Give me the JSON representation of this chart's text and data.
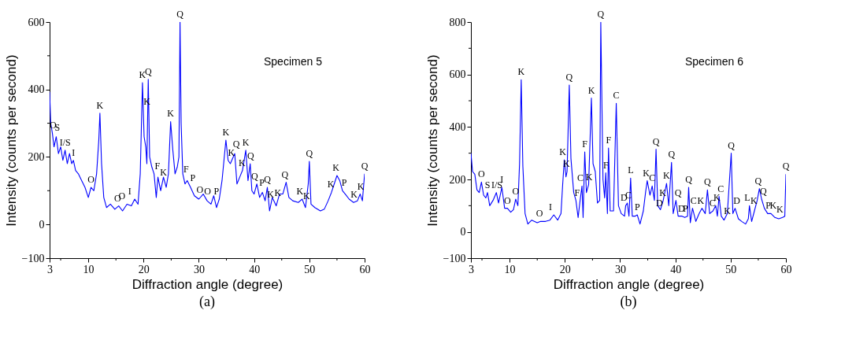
{
  "chart_data": [
    {
      "type": "line",
      "title": "(a)",
      "xlabel": "Diffraction angle (degree)",
      "ylabel": "Intensity (counts per second)",
      "xlim": [
        3,
        60
      ],
      "ylim": [
        -100,
        600
      ],
      "xticks": [
        3,
        {
          "value": 5,
          "label": null
        },
        10,
        {
          "value": 15,
          "label": null
        },
        20,
        {
          "value": 25,
          "label": null
        },
        30,
        {
          "value": 35,
          "label": null
        },
        40,
        {
          "value": 45,
          "label": null
        },
        50,
        {
          "value": 55,
          "label": null
        },
        60
      ],
      "yticks": [
        -100,
        0,
        {
          "value": 100,
          "label": null
        },
        200,
        {
          "value": 300,
          "label": null
        },
        400,
        {
          "value": 500,
          "label": null
        },
        600
      ],
      "series": [
        {
          "color": "#0000ff",
          "x": [
            3,
            3.2,
            3.5,
            3.8,
            4.2,
            4.6,
            5,
            5.4,
            5.8,
            6.2,
            6.6,
            7,
            7.3,
            7.7,
            8.2,
            8.8,
            9.4,
            10,
            10.5,
            11,
            11.5,
            11.9,
            12.1,
            12.4,
            12.8,
            13.3,
            14,
            14.8,
            15.5,
            16.2,
            17,
            17.8,
            18.4,
            19,
            19.4,
            19.8,
            20.1,
            20.4,
            20.6,
            20.85,
            21.1,
            21.5,
            21.9,
            22.3,
            22.6,
            23.1,
            23.6,
            24.1,
            24.5,
            24.9,
            25.3,
            25.7,
            26.1,
            26.4,
            26.6,
            26.8,
            27.1,
            27.5,
            27.9,
            28.5,
            29.2,
            30,
            30.8,
            31.5,
            32.2,
            32.7,
            33.2,
            33.7,
            34.2,
            34.9,
            35.3,
            35.7,
            36.1,
            36.5,
            36.9,
            37.4,
            37.9,
            38.5,
            38.9,
            39.3,
            39.6,
            40,
            40.5,
            41,
            41.5,
            42,
            42.4,
            42.8,
            43.3,
            44,
            44.6,
            45.2,
            45.8,
            46.3,
            47,
            48,
            48.7,
            49.3,
            49.8,
            50,
            50.3,
            51,
            52,
            52.7,
            53.4,
            54,
            54.5,
            55,
            55.5,
            56,
            56.5,
            57.2,
            58,
            58.7,
            59.2,
            59.6,
            60
          ],
          "values": [
            393,
            300,
            270,
            230,
            260,
            210,
            230,
            190,
            220,
            180,
            210,
            180,
            190,
            160,
            150,
            130,
            110,
            80,
            110,
            100,
            150,
            250,
            330,
            180,
            80,
            50,
            60,
            45,
            55,
            40,
            60,
            55,
            75,
            60,
            150,
            420,
            260,
            230,
            180,
            430,
            200,
            170,
            150,
            80,
            140,
            100,
            140,
            110,
            150,
            305,
            220,
            150,
            170,
            200,
            600,
            300,
            150,
            120,
            130,
            110,
            85,
            75,
            90,
            70,
            60,
            85,
            50,
            75,
            130,
            250,
            190,
            180,
            195,
            210,
            120,
            140,
            160,
            220,
            130,
            180,
            100,
            90,
            120,
            80,
            95,
            70,
            110,
            40,
            80,
            55,
            90,
            90,
            125,
            80,
            70,
            65,
            75,
            50,
            120,
            187,
            60,
            50,
            40,
            45,
            70,
            95,
            120,
            145,
            130,
            100,
            90,
            75,
            65,
            70,
            90,
            70,
            150
          ]
        }
      ],
      "annotations": [
        "Specimen 5",
        {
          "text": "O",
          "x": 3.6,
          "y": 270
        },
        {
          "text": "S",
          "x": 4.4,
          "y": 265
        },
        {
          "text": "I/S",
          "x": 5.8,
          "y": 220
        },
        {
          "text": "I",
          "x": 7.3,
          "y": 190
        },
        {
          "text": "O",
          "x": 10.5,
          "y": 110
        },
        {
          "text": "K",
          "x": 12.1,
          "y": 330
        },
        {
          "text": "O",
          "x": 15.3,
          "y": 55
        },
        {
          "text": "O",
          "x": 16.1,
          "y": 60
        },
        {
          "text": "I",
          "x": 17.5,
          "y": 75
        },
        {
          "text": "K",
          "x": 19.8,
          "y": 420
        },
        {
          "text": "Q",
          "x": 20.85,
          "y": 430
        },
        {
          "text": "K",
          "x": 20.6,
          "y": 340
        },
        {
          "text": "F",
          "x": 22.5,
          "y": 150
        },
        {
          "text": "K",
          "x": 23.6,
          "y": 130
        },
        {
          "text": "K",
          "x": 24.9,
          "y": 305
        },
        {
          "text": "Q",
          "x": 26.6,
          "y": 600
        },
        {
          "text": "F",
          "x": 27.7,
          "y": 140
        },
        {
          "text": "P",
          "x": 28.9,
          "y": 115
        },
        {
          "text": "O",
          "x": 30.2,
          "y": 80
        },
        {
          "text": "O",
          "x": 31.6,
          "y": 75
        },
        {
          "text": "P",
          "x": 33.2,
          "y": 75
        },
        {
          "text": "K",
          "x": 34.9,
          "y": 250
        },
        {
          "text": "K",
          "x": 35.9,
          "y": 190
        },
        {
          "text": "Q",
          "x": 36.8,
          "y": 215
        },
        {
          "text": "K",
          "x": 37.8,
          "y": 160
        },
        {
          "text": "K",
          "x": 38.5,
          "y": 220
        },
        {
          "text": "Q",
          "x": 39.4,
          "y": 180
        },
        {
          "text": "Q",
          "x": 40.1,
          "y": 120
        },
        {
          "text": "P",
          "x": 41.4,
          "y": 100
        },
        {
          "text": "Q",
          "x": 42.4,
          "y": 110
        },
        {
          "text": "K",
          "x": 43,
          "y": 65
        },
        {
          "text": "K",
          "x": 44.3,
          "y": 70
        },
        {
          "text": "Q",
          "x": 45.6,
          "y": 125
        },
        {
          "text": "K",
          "x": 48.3,
          "y": 75
        },
        {
          "text": "K",
          "x": 49.5,
          "y": 60
        },
        {
          "text": "Q",
          "x": 50,
          "y": 187
        },
        {
          "text": "K",
          "x": 53.9,
          "y": 95
        },
        {
          "text": "K",
          "x": 54.8,
          "y": 145
        },
        {
          "text": "P",
          "x": 56.3,
          "y": 100
        },
        {
          "text": "K",
          "x": 58.1,
          "y": 65
        },
        {
          "text": "K",
          "x": 59.3,
          "y": 90
        },
        {
          "text": "Q",
          "x": 60,
          "y": 150
        }
      ]
    },
    {
      "type": "line",
      "title": "(b)",
      "xlabel": "Diffraction angle (degree)",
      "ylabel": "Intensity (counts per second)",
      "xlim": [
        3,
        60
      ],
      "ylim": [
        -100,
        800
      ],
      "xticks": [
        3,
        {
          "value": 5,
          "label": null
        },
        10,
        {
          "value": 15,
          "label": null
        },
        20,
        {
          "value": 25,
          "label": null
        },
        30,
        {
          "value": 35,
          "label": null
        },
        40,
        {
          "value": 45,
          "label": null
        },
        50,
        {
          "value": 55,
          "label": null
        },
        60
      ],
      "yticks": [
        -100,
        0,
        {
          "value": 100,
          "label": null
        },
        200,
        {
          "value": 300,
          "label": null
        },
        400,
        {
          "value": 500,
          "label": null
        },
        600,
        {
          "value": 700,
          "label": null
        },
        800
      ],
      "series": [
        {
          "color": "#0000ff",
          "x": [
            3,
            3.3,
            3.7,
            4.1,
            4.5,
            4.9,
            5.3,
            5.7,
            6,
            6.4,
            7,
            7.6,
            8,
            8.6,
            9.1,
            9.6,
            10.2,
            10.7,
            11.1,
            11.5,
            11.8,
            12.1,
            12.4,
            12.8,
            13.3,
            14,
            15,
            15.6,
            16.5,
            17.3,
            18,
            18.7,
            19.3,
            19.6,
            19.9,
            20.2,
            20.4,
            20.8,
            21.1,
            21.6,
            22,
            22.4,
            22.7,
            23.1,
            23.3,
            23.6,
            23.9,
            24.3,
            24.8,
            25.1,
            25.5,
            25.9,
            26.3,
            26.5,
            26.9,
            27.2,
            27.4,
            27.7,
            27.9,
            28.2,
            28.8,
            29.3,
            29.7,
            30.2,
            30.8,
            31,
            31.3,
            31.6,
            31.9,
            32.2,
            32.7,
            33.1,
            33.6,
            34.2,
            34.6,
            34.9,
            35.4,
            35.8,
            36.2,
            36.5,
            36.8,
            37.3,
            37.8,
            38.4,
            38.8,
            39.3,
            39.6,
            40.1,
            40.5,
            41.2,
            41.7,
            42.2,
            42.4,
            42.7,
            43.1,
            43.7,
            44.3,
            44.8,
            45.4,
            45.8,
            46.2,
            46.8,
            47.3,
            47.6,
            47.9,
            48.3,
            48.8,
            49.4,
            50.1,
            50.4,
            50.8,
            51.4,
            52,
            52.7,
            53.2,
            53.4,
            53.8,
            54.3,
            54.8,
            55.2,
            55.6,
            56.1,
            56.7,
            57.3,
            58,
            58.7,
            59.4,
            59.8,
            60
          ],
          "values": [
            300,
            230,
            220,
            160,
            150,
            190,
            140,
            130,
            150,
            100,
            120,
            150,
            110,
            170,
            90,
            90,
            75,
            85,
            125,
            100,
            260,
            580,
            250,
            70,
            30,
            45,
            35,
            40,
            40,
            45,
            65,
            45,
            70,
            180,
            275,
            210,
            230,
            560,
            280,
            150,
            120,
            55,
            110,
            175,
            55,
            305,
            150,
            180,
            510,
            260,
            230,
            110,
            120,
            800,
            200,
            130,
            225,
            70,
            320,
            80,
            80,
            490,
            100,
            70,
            60,
            100,
            110,
            60,
            205,
            60,
            60,
            65,
            30,
            80,
            150,
            195,
            140,
            175,
            120,
            315,
            100,
            85,
            120,
            185,
            100,
            265,
            70,
            120,
            60,
            60,
            55,
            60,
            170,
            35,
            90,
            40,
            70,
            90,
            70,
            160,
            70,
            80,
            100,
            60,
            135,
            60,
            45,
            70,
            300,
            70,
            90,
            50,
            40,
            30,
            50,
            100,
            40,
            80,
            120,
            165,
            125,
            90,
            70,
            70,
            55,
            50,
            55,
            60,
            220
          ]
        }
      ],
      "annotations": [
        "Specimen 6",
        {
          "text": "O",
          "x": 4.9,
          "y": 190
        },
        {
          "text": "S",
          "x": 6,
          "y": 150
        },
        {
          "text": "I/S",
          "x": 7.7,
          "y": 150
        },
        {
          "text": "I",
          "x": 8.6,
          "y": 170
        },
        {
          "text": "O",
          "x": 9.6,
          "y": 90
        },
        {
          "text": "O",
          "x": 11.1,
          "y": 125
        },
        {
          "text": "K",
          "x": 12.1,
          "y": 580
        },
        {
          "text": "O",
          "x": 15.4,
          "y": 40
        },
        {
          "text": "I",
          "x": 17.4,
          "y": 65
        },
        {
          "text": "K",
          "x": 19.6,
          "y": 275
        },
        {
          "text": "K",
          "x": 20.3,
          "y": 230
        },
        {
          "text": "Q",
          "x": 20.8,
          "y": 560
        },
        {
          "text": "F",
          "x": 22.2,
          "y": 120
        },
        {
          "text": "C",
          "x": 22.8,
          "y": 175
        },
        {
          "text": "F",
          "x": 23.6,
          "y": 305
        },
        {
          "text": "K",
          "x": 24.4,
          "y": 180
        },
        {
          "text": "K",
          "x": 24.8,
          "y": 510
        },
        {
          "text": "Q",
          "x": 26.5,
          "y": 800
        },
        {
          "text": "F",
          "x": 27.4,
          "y": 225
        },
        {
          "text": "F",
          "x": 27.9,
          "y": 320
        },
        {
          "text": "C",
          "x": 29.3,
          "y": 490
        },
        {
          "text": "D",
          "x": 30.7,
          "y": 100
        },
        {
          "text": "C",
          "x": 31.5,
          "y": 110
        },
        {
          "text": "L",
          "x": 31.9,
          "y": 205
        },
        {
          "text": "P",
          "x": 33.1,
          "y": 65
        },
        {
          "text": "K",
          "x": 34.7,
          "y": 195
        },
        {
          "text": "C",
          "x": 35.8,
          "y": 175
        },
        {
          "text": "Q",
          "x": 36.5,
          "y": 315
        },
        {
          "text": "D",
          "x": 37.1,
          "y": 80
        },
        {
          "text": "K",
          "x": 37.7,
          "y": 120
        },
        {
          "text": "K",
          "x": 38.4,
          "y": 185
        },
        {
          "text": "Q",
          "x": 39.3,
          "y": 265
        },
        {
          "text": "Q",
          "x": 40.5,
          "y": 120
        },
        {
          "text": "D",
          "x": 41.1,
          "y": 60
        },
        {
          "text": "P",
          "x": 41.8,
          "y": 60
        },
        {
          "text": "Q",
          "x": 42.4,
          "y": 170
        },
        {
          "text": "C",
          "x": 43.3,
          "y": 90
        },
        {
          "text": "K",
          "x": 44.6,
          "y": 90
        },
        {
          "text": "Q",
          "x": 45.8,
          "y": 160
        },
        {
          "text": "C",
          "x": 46.7,
          "y": 80
        },
        {
          "text": "K",
          "x": 47.5,
          "y": 100
        },
        {
          "text": "C",
          "x": 48.2,
          "y": 135
        },
        {
          "text": "K",
          "x": 49.4,
          "y": 50
        },
        {
          "text": "Q",
          "x": 50.1,
          "y": 300
        },
        {
          "text": "D",
          "x": 51.1,
          "y": 90
        },
        {
          "text": "L",
          "x": 53,
          "y": 100
        },
        {
          "text": "K",
          "x": 54.2,
          "y": 90
        },
        {
          "text": "Q",
          "x": 55,
          "y": 165
        },
        {
          "text": "Q",
          "x": 55.9,
          "y": 125
        },
        {
          "text": "P",
          "x": 56.8,
          "y": 70
        },
        {
          "text": "K",
          "x": 57.7,
          "y": 70
        },
        {
          "text": "K",
          "x": 58.9,
          "y": 55
        },
        {
          "text": "Q",
          "x": 60,
          "y": 220
        }
      ]
    }
  ]
}
